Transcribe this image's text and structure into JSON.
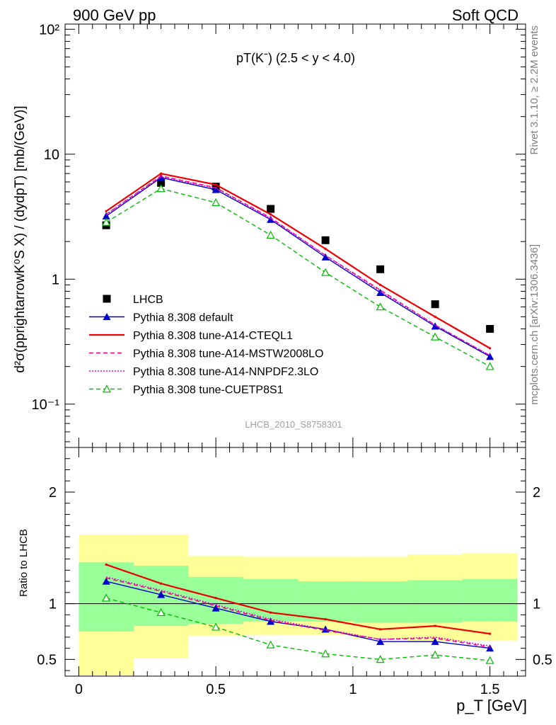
{
  "header": {
    "left": "900 GeV pp",
    "right": "Soft QCD"
  },
  "side_labels": {
    "rivet": "Rivet 3.1.10, ≥ 2.2M events",
    "mcplots": "mcplots.cern.ch [arXiv:1306.3436]"
  },
  "chart_data": [
    {
      "type": "line",
      "panel": "main",
      "title": "pT(Kˉ) (2.5 < y < 4.0)",
      "analysis_label": "LHCB_2010_S8758301",
      "ylabel": "d²σ(pprightarrowK⁰S X) / (dydpT) [mb/(GeV)]",
      "yscale": "log",
      "xlim": [
        -0.05,
        1.63
      ],
      "ylim": [
        0.045,
        110
      ],
      "y_ticks": [
        0.1,
        1,
        10,
        100
      ],
      "y_tick_labels": [
        "10⁻¹",
        "1",
        "10",
        "10²"
      ],
      "legend_position": "lower-left",
      "x": [
        0.1,
        0.3,
        0.5,
        0.7,
        0.9,
        1.1,
        1.3,
        1.5
      ],
      "series": [
        {
          "name": "LHCB",
          "style": "data",
          "color": "#000000",
          "values": [
            2.7,
            5.9,
            5.5,
            3.65,
            2.05,
            1.2,
            0.63,
            0.4
          ]
        },
        {
          "name": "Pythia 8.308 default",
          "style": "solid-triangle",
          "color": "#0000cc",
          "values": [
            3.2,
            6.5,
            5.2,
            3.0,
            1.5,
            0.78,
            0.42,
            0.24
          ]
        },
        {
          "name": "Pythia 8.308 tune-A14-CTEQL1",
          "style": "solid",
          "color": "#ee0000",
          "values": [
            3.5,
            7.0,
            5.7,
            3.3,
            1.75,
            0.9,
            0.5,
            0.28
          ]
        },
        {
          "name": "Pythia 8.308 tune-A14-MSTW2008LO",
          "style": "dashed",
          "color": "#ee0077",
          "values": [
            3.3,
            6.7,
            5.4,
            3.1,
            1.55,
            0.82,
            0.43,
            0.245
          ]
        },
        {
          "name": "Pythia 8.308 tune-A14-NNPDF2.3LO",
          "style": "dotted",
          "color": "#dd00dd",
          "values": [
            3.3,
            6.6,
            5.35,
            3.05,
            1.55,
            0.8,
            0.43,
            0.245
          ]
        },
        {
          "name": "Pythia 8.308 tune-CUETP8S1",
          "style": "dashed-open-triangle",
          "color": "#00bb00",
          "values": [
            2.85,
            5.3,
            4.1,
            2.25,
            1.13,
            0.6,
            0.345,
            0.2
          ]
        }
      ]
    },
    {
      "type": "line",
      "panel": "ratio",
      "ylabel": "Ratio to LHCB",
      "xlabel": "p_T [GeV]",
      "xlim": [
        -0.05,
        1.63
      ],
      "ylim": [
        0.35,
        2.4
      ],
      "x_ticks": [
        0,
        0.5,
        1,
        1.5
      ],
      "x_tick_labels": [
        "0",
        "0.5",
        "1",
        "1.5"
      ],
      "y_ticks": [
        0.5,
        1,
        2
      ],
      "y_tick_labels": [
        "0.5",
        "1",
        "2"
      ],
      "bins": [
        [
          0.0,
          0.2
        ],
        [
          0.2,
          0.4
        ],
        [
          0.4,
          0.6
        ],
        [
          0.6,
          0.8
        ],
        [
          0.8,
          1.0
        ],
        [
          1.0,
          1.2
        ],
        [
          1.2,
          1.4
        ],
        [
          1.4,
          1.6
        ]
      ],
      "band_yellow": [
        [
          0.36,
          1.62
        ],
        [
          0.51,
          1.62
        ],
        [
          0.71,
          1.43
        ],
        [
          0.72,
          1.42
        ],
        [
          0.72,
          1.42
        ],
        [
          0.69,
          1.42
        ],
        [
          0.66,
          1.44
        ],
        [
          0.67,
          1.45
        ]
      ],
      "band_green": [
        [
          0.75,
          1.37
        ],
        [
          0.8,
          1.34
        ],
        [
          0.82,
          1.24
        ],
        [
          0.84,
          1.22
        ],
        [
          0.84,
          1.2
        ],
        [
          0.83,
          1.2
        ],
        [
          0.83,
          1.21
        ],
        [
          0.84,
          1.22
        ]
      ],
      "x": [
        0.1,
        0.3,
        0.5,
        0.7,
        0.9,
        1.1,
        1.3,
        1.5
      ],
      "series": [
        {
          "name": "Pythia 8.308 default",
          "style": "solid-triangle",
          "color": "#0000cc",
          "values": [
            1.2,
            1.08,
            0.96,
            0.84,
            0.77,
            0.66,
            0.66,
            0.6
          ]
        },
        {
          "name": "Pythia 8.308 tune-A14-CTEQL1",
          "style": "solid",
          "color": "#ee0000",
          "values": [
            1.35,
            1.18,
            1.05,
            0.92,
            0.86,
            0.77,
            0.8,
            0.73
          ]
        },
        {
          "name": "Pythia 8.308 tune-A14-MSTW2008LO",
          "style": "dashed",
          "color": "#ee0077",
          "values": [
            1.23,
            1.11,
            0.98,
            0.85,
            0.76,
            0.68,
            0.69,
            0.61
          ]
        },
        {
          "name": "Pythia 8.308 tune-A14-NNPDF2.3LO",
          "style": "dotted",
          "color": "#dd00dd",
          "values": [
            1.24,
            1.12,
            0.99,
            0.86,
            0.77,
            0.68,
            0.7,
            0.62
          ]
        },
        {
          "name": "Pythia 8.308 tune-CUETP8S1",
          "style": "dashed-open-triangle",
          "color": "#00bb00",
          "values": [
            1.05,
            0.92,
            0.79,
            0.63,
            0.55,
            0.5,
            0.54,
            0.49
          ]
        }
      ]
    }
  ]
}
